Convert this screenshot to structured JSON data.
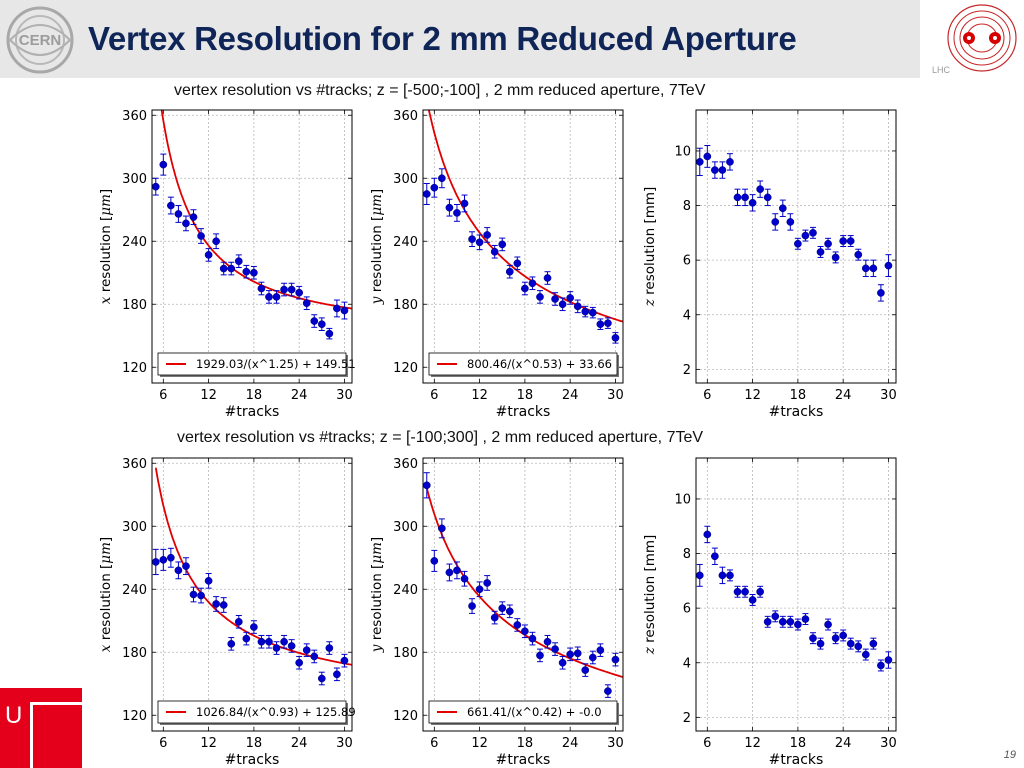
{
  "slide": {
    "title": "Vertex Resolution for 2 mm Reduced Aperture",
    "page_number": "19",
    "cern_logo_text": "CERN",
    "lhc_logo_text": "LHC",
    "uni_logo_text": "U"
  },
  "rows": [
    {
      "title": "vertex resolution vs #tracks; z = [-500;-100] , 2 mm reduced aperture, 7TeV"
    },
    {
      "title": "vertex resolution vs #tracks; z = [-100;300] , 2 mm reduced aperture, 7TeV"
    }
  ],
  "colors": {
    "points": "#0000cc",
    "fit": "#e00000",
    "title": "#0f2457",
    "grid": "#b8b8b8"
  },
  "chart_data": [
    {
      "type": "scatter",
      "row": 0,
      "col": 0,
      "xlabel": "#tracks",
      "ylabel_var": "x",
      "ylabel_rest": " resolution [",
      "ylabel_unit": "μm",
      "ylabel_end": "]",
      "xlim": [
        4.5,
        31
      ],
      "ylim": [
        105,
        365
      ],
      "xticks": [
        6,
        12,
        18,
        24,
        30
      ],
      "yticks": [
        120,
        180,
        240,
        300,
        360
      ],
      "grid": true,
      "legend_position": "bottom",
      "fit": {
        "label": "1929.03/(x^1.25) + 149.51",
        "a": 1929.03,
        "p": 1.25,
        "c": 149.51
      },
      "x": [
        5,
        6,
        7,
        8,
        9,
        10,
        11,
        12,
        13,
        14,
        15,
        16,
        17,
        18,
        19,
        20,
        21,
        22,
        23,
        24,
        25,
        26,
        27,
        28,
        29,
        30
      ],
      "y": [
        292,
        313,
        274,
        266,
        257,
        263,
        245,
        227,
        240,
        214,
        214,
        221,
        211,
        210,
        195,
        187,
        187,
        194,
        194,
        191,
        181,
        164,
        161,
        152,
        176,
        174
      ],
      "yerr": [
        8,
        10,
        8,
        8,
        7,
        7,
        7,
        6,
        7,
        6,
        6,
        6,
        6,
        6,
        6,
        6,
        6,
        6,
        6,
        6,
        6,
        6,
        6,
        5,
        8,
        8
      ]
    },
    {
      "type": "scatter",
      "row": 0,
      "col": 1,
      "xlabel": "#tracks",
      "ylabel_var": "y",
      "ylabel_rest": " resolution [",
      "ylabel_unit": "μm",
      "ylabel_end": "]",
      "xlim": [
        4.5,
        31
      ],
      "ylim": [
        105,
        365
      ],
      "xticks": [
        6,
        12,
        18,
        24,
        30
      ],
      "yticks": [
        120,
        180,
        240,
        300,
        360
      ],
      "grid": true,
      "legend_position": "bottom",
      "fit": {
        "label": "800.46/(x^0.53) + 33.66",
        "a": 800.46,
        "p": 0.53,
        "c": 33.66
      },
      "x": [
        5,
        6,
        7,
        8,
        9,
        10,
        11,
        12,
        13,
        14,
        15,
        16,
        17,
        18,
        19,
        20,
        21,
        22,
        23,
        24,
        25,
        26,
        27,
        28,
        29,
        30
      ],
      "y": [
        285,
        291,
        300,
        272,
        267,
        276,
        242,
        239,
        246,
        230,
        237,
        211,
        219,
        195,
        200,
        187,
        205,
        185,
        180,
        186,
        178,
        173,
        172,
        161,
        162,
        148
      ],
      "yerr": [
        10,
        9,
        9,
        8,
        8,
        8,
        7,
        7,
        7,
        6,
        6,
        6,
        6,
        6,
        6,
        6,
        6,
        6,
        6,
        6,
        6,
        5,
        5,
        5,
        5,
        5
      ]
    },
    {
      "type": "scatter",
      "row": 0,
      "col": 2,
      "xlabel": "#tracks",
      "ylabel_var": "z",
      "ylabel_rest": " resolution [mm]",
      "ylabel_unit": "",
      "ylabel_end": "",
      "xlim": [
        4.5,
        31
      ],
      "ylim": [
        1.5,
        11.5
      ],
      "xticks": [
        6,
        12,
        18,
        24,
        30
      ],
      "yticks": [
        2,
        4,
        6,
        8,
        10
      ],
      "grid": true,
      "legend_position": "",
      "x": [
        5,
        6,
        7,
        8,
        9,
        10,
        11,
        12,
        13,
        14,
        15,
        16,
        17,
        18,
        19,
        20,
        21,
        22,
        23,
        24,
        25,
        26,
        27,
        28,
        29,
        30
      ],
      "y": [
        9.6,
        9.8,
        9.3,
        9.3,
        9.6,
        8.3,
        8.3,
        8.1,
        8.6,
        8.3,
        7.4,
        7.9,
        7.4,
        6.6,
        6.9,
        7.0,
        6.3,
        6.6,
        6.1,
        6.7,
        6.7,
        6.2,
        5.7,
        5.7,
        4.8,
        5.8
      ],
      "yerr": [
        0.5,
        0.4,
        0.3,
        0.3,
        0.3,
        0.3,
        0.3,
        0.3,
        0.3,
        0.3,
        0.3,
        0.3,
        0.3,
        0.2,
        0.2,
        0.2,
        0.2,
        0.2,
        0.2,
        0.2,
        0.2,
        0.2,
        0.3,
        0.3,
        0.3,
        0.4
      ]
    },
    {
      "type": "scatter",
      "row": 1,
      "col": 0,
      "xlabel": "#tracks",
      "ylabel_var": "x",
      "ylabel_rest": " resolution [",
      "ylabel_unit": "μm",
      "ylabel_end": "]",
      "xlim": [
        4.5,
        31
      ],
      "ylim": [
        105,
        365
      ],
      "xticks": [
        6,
        12,
        18,
        24,
        30
      ],
      "yticks": [
        120,
        180,
        240,
        300,
        360
      ],
      "grid": true,
      "legend_position": "bottom",
      "fit": {
        "label": "1026.84/(x^0.93) + 125.89",
        "a": 1026.84,
        "p": 0.93,
        "c": 125.89
      },
      "x": [
        5,
        6,
        7,
        8,
        9,
        10,
        11,
        12,
        13,
        14,
        15,
        16,
        17,
        18,
        19,
        20,
        21,
        22,
        23,
        24,
        25,
        26,
        27,
        28,
        29,
        30
      ],
      "y": [
        266,
        268,
        270,
        258,
        262,
        235,
        234,
        248,
        226,
        225,
        188,
        209,
        193,
        204,
        190,
        190,
        184,
        190,
        186,
        170,
        182,
        176,
        155,
        184,
        159,
        172
      ],
      "yerr": [
        12,
        10,
        9,
        8,
        8,
        7,
        7,
        7,
        7,
        7,
        6,
        6,
        6,
        6,
        6,
        6,
        6,
        6,
        6,
        6,
        6,
        6,
        6,
        6,
        6,
        6
      ]
    },
    {
      "type": "scatter",
      "row": 1,
      "col": 1,
      "xlabel": "#tracks",
      "ylabel_var": "y",
      "ylabel_rest": " resolution [",
      "ylabel_unit": "μm",
      "ylabel_end": "]",
      "xlim": [
        4.5,
        31
      ],
      "ylim": [
        105,
        365
      ],
      "xticks": [
        6,
        12,
        18,
        24,
        30
      ],
      "yticks": [
        120,
        180,
        240,
        300,
        360
      ],
      "grid": true,
      "legend_position": "bottom",
      "fit": {
        "label": "661.41/(x^0.42) + -0.0",
        "a": 661.41,
        "p": 0.42,
        "c": 0
      },
      "x": [
        5,
        6,
        7,
        8,
        9,
        10,
        11,
        12,
        13,
        14,
        15,
        16,
        17,
        18,
        19,
        20,
        21,
        22,
        23,
        24,
        25,
        26,
        27,
        28,
        29,
        30
      ],
      "y": [
        339,
        267,
        298,
        256,
        258,
        250,
        224,
        240,
        246,
        213,
        222,
        219,
        206,
        200,
        193,
        177,
        190,
        183,
        170,
        178,
        179,
        163,
        175,
        182,
        143,
        173
      ],
      "yerr": [
        12,
        10,
        9,
        8,
        8,
        7,
        7,
        7,
        7,
        6,
        6,
        6,
        6,
        6,
        6,
        6,
        6,
        6,
        6,
        6,
        6,
        6,
        6,
        6,
        6,
        6
      ]
    },
    {
      "type": "scatter",
      "row": 1,
      "col": 2,
      "xlabel": "#tracks",
      "ylabel_var": "z",
      "ylabel_rest": " resolution [mm]",
      "ylabel_unit": "",
      "ylabel_end": "",
      "xlim": [
        4.5,
        31
      ],
      "ylim": [
        1.5,
        11.5
      ],
      "xticks": [
        6,
        12,
        18,
        24,
        30
      ],
      "yticks": [
        2,
        4,
        6,
        8,
        10
      ],
      "grid": true,
      "legend_position": "",
      "x": [
        5,
        6,
        7,
        8,
        9,
        10,
        11,
        12,
        13,
        14,
        15,
        16,
        17,
        18,
        19,
        20,
        21,
        22,
        23,
        24,
        25,
        26,
        27,
        28,
        29,
        30
      ],
      "y": [
        7.2,
        8.7,
        7.9,
        7.2,
        7.2,
        6.6,
        6.6,
        6.3,
        6.6,
        5.5,
        5.7,
        5.5,
        5.5,
        5.4,
        5.6,
        4.9,
        4.7,
        5.4,
        4.9,
        5.0,
        4.7,
        4.6,
        4.3,
        4.7,
        3.9,
        4.1
      ],
      "yerr": [
        0.4,
        0.3,
        0.3,
        0.3,
        0.2,
        0.2,
        0.2,
        0.2,
        0.2,
        0.2,
        0.2,
        0.2,
        0.2,
        0.2,
        0.2,
        0.2,
        0.2,
        0.2,
        0.2,
        0.2,
        0.2,
        0.2,
        0.2,
        0.2,
        0.2,
        0.3
      ]
    }
  ]
}
